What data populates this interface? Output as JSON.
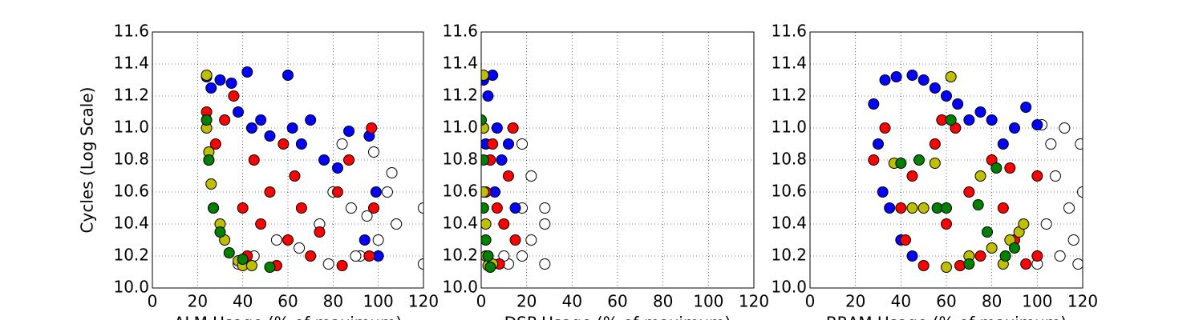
{
  "chart_data": [
    {
      "type": "scatter",
      "xlabel": "ALM Usage (% of maximum)",
      "ylabel": "Cycles (Log Scale)",
      "xlim": [
        0,
        120
      ],
      "ylim": [
        10,
        11.6
      ],
      "xticks": [
        0,
        20,
        40,
        60,
        80,
        100,
        120
      ],
      "yticks": [
        {
          "value": 10,
          "label": "10.0"
        },
        10.2,
        10.4,
        10.6,
        10.8,
        {
          "value": 11,
          "label": "11.0"
        },
        11.2,
        11.4,
        11.6
      ],
      "grid": true,
      "series": [
        {
          "color": "#ffffff",
          "x": [
            38,
            45,
            55,
            65,
            74,
            78,
            80,
            84,
            88,
            92,
            95,
            100,
            104,
            108,
            106,
            120,
            120,
            98,
            90
          ],
          "y": [
            10.15,
            10.2,
            10.3,
            10.25,
            10.4,
            10.15,
            10.6,
            10.9,
            10.5,
            10.2,
            10.45,
            10.3,
            10.6,
            10.4,
            10.72,
            10.5,
            10.15,
            10.85,
            10.2
          ]
        },
        {
          "color": "#0000ff",
          "x": [
            24,
            26,
            30,
            35,
            38,
            42,
            44,
            48,
            52,
            60,
            62,
            66,
            70,
            76,
            82,
            87,
            96,
            99,
            100,
            94
          ],
          "y": [
            11.32,
            11.25,
            11.3,
            11.28,
            11.1,
            11.35,
            11.0,
            11.05,
            10.95,
            11.33,
            11.0,
            10.9,
            11.05,
            10.8,
            10.75,
            10.98,
            10.95,
            10.6,
            10.2,
            10.3
          ]
        },
        {
          "color": "#ff0000",
          "x": [
            24,
            25,
            28,
            32,
            36,
            40,
            42,
            45,
            48,
            52,
            55,
            58,
            60,
            63,
            66,
            70,
            74,
            82,
            84,
            87,
            97,
            98,
            96
          ],
          "y": [
            11.1,
            10.8,
            10.9,
            11.05,
            11.2,
            10.5,
            10.2,
            10.8,
            10.4,
            10.6,
            10.14,
            10.9,
            10.3,
            10.7,
            10.5,
            10.2,
            10.35,
            10.6,
            10.14,
            10.8,
            11.0,
            10.5,
            10.2
          ]
        },
        {
          "color": "#bfbf00",
          "x": [
            24,
            24,
            25,
            26,
            27,
            30,
            32,
            38,
            40,
            44
          ],
          "y": [
            11.33,
            11.0,
            10.85,
            10.65,
            10.5,
            10.4,
            10.3,
            10.17,
            10.14,
            10.14
          ]
        },
        {
          "color": "#008000",
          "x": [
            24,
            25,
            27,
            30,
            34,
            40,
            52
          ],
          "y": [
            11.05,
            10.8,
            10.5,
            10.35,
            10.22,
            10.18,
            10.13
          ]
        }
      ]
    },
    {
      "type": "scatter",
      "xlabel": "DSP Usage (% of maximum)",
      "xlim": [
        0,
        120
      ],
      "ylim": [
        10,
        11.6
      ],
      "xticks": [
        0,
        20,
        40,
        60,
        80,
        100,
        120
      ],
      "yticks": [
        {
          "value": 10,
          "label": "10.0"
        },
        10.2,
        10.4,
        10.6,
        10.8,
        {
          "value": 11,
          "label": "11.0"
        },
        11.2,
        11.4,
        11.6
      ],
      "grid": true,
      "series": [
        {
          "color": "#ffffff",
          "x": [
            18,
            18,
            18,
            22,
            22,
            28,
            28,
            28,
            12,
            10
          ],
          "y": [
            10.2,
            10.5,
            10.9,
            10.7,
            10.3,
            10.15,
            10.4,
            10.5,
            10.15,
            10.2
          ]
        },
        {
          "color": "#0000ff",
          "x": [
            1,
            3,
            5,
            7,
            9,
            12,
            15,
            2,
            6
          ],
          "y": [
            11.3,
            11.2,
            11.33,
            11.0,
            10.8,
            10.9,
            10.5,
            10.9,
            10.6
          ]
        },
        {
          "color": "#ff0000",
          "x": [
            1,
            2,
            3,
            5,
            7,
            8,
            10,
            12,
            14,
            15,
            4
          ],
          "y": [
            11.0,
            10.6,
            10.2,
            10.9,
            10.5,
            10.15,
            10.4,
            10.7,
            11.0,
            10.3,
            10.8
          ]
        },
        {
          "color": "#bfbf00",
          "x": [
            1,
            1,
            1,
            2,
            2,
            3,
            5
          ],
          "y": [
            11.33,
            11.0,
            10.6,
            10.4,
            10.2,
            10.14,
            10.15
          ]
        },
        {
          "color": "#008000",
          "x": [
            0,
            1,
            1,
            2,
            3,
            4
          ],
          "y": [
            11.05,
            10.8,
            10.5,
            10.3,
            10.2,
            10.13
          ]
        }
      ]
    },
    {
      "type": "scatter",
      "xlabel": "BRAM Usage (% of maximum)",
      "xlim": [
        0,
        120
      ],
      "ylim": [
        10,
        11.6
      ],
      "xticks": [
        0,
        20,
        40,
        60,
        80,
        100,
        120
      ],
      "yticks": [
        {
          "value": 10,
          "label": "10.0"
        },
        10.2,
        10.4,
        10.6,
        10.8,
        {
          "value": 11,
          "label": "11.0"
        },
        11.2,
        11.4,
        11.6
      ],
      "grid": true,
      "series": [
        {
          "color": "#ffffff",
          "x": [
            100,
            104,
            108,
            112,
            116,
            120,
            118,
            110,
            106,
            114,
            102,
            119
          ],
          "y": [
            10.15,
            10.4,
            10.7,
            11.0,
            10.3,
            10.6,
            10.15,
            10.2,
            10.9,
            10.5,
            11.02,
            10.9
          ]
        },
        {
          "color": "#0000ff",
          "x": [
            28,
            30,
            33,
            38,
            45,
            50,
            55,
            60,
            65,
            70,
            80,
            90,
            95,
            100,
            32,
            35,
            40,
            45,
            75,
            85
          ],
          "y": [
            11.15,
            10.9,
            11.3,
            11.32,
            11.33,
            11.3,
            11.25,
            11.2,
            11.15,
            11.05,
            11.05,
            11.0,
            11.13,
            11.02,
            10.6,
            10.5,
            10.3,
            10.2,
            11.1,
            10.9
          ]
        },
        {
          "color": "#ff0000",
          "x": [
            28,
            33,
            40,
            45,
            50,
            55,
            60,
            64,
            70,
            75,
            80,
            85,
            90,
            95,
            100,
            100,
            42,
            58,
            66,
            88
          ],
          "y": [
            10.8,
            11.0,
            10.5,
            10.7,
            10.14,
            10.9,
            10.4,
            11.0,
            10.6,
            10.2,
            10.8,
            10.5,
            10.3,
            10.15,
            10.7,
            10.2,
            10.3,
            11.05,
            10.14,
            10.75
          ]
        },
        {
          "color": "#bfbf00",
          "x": [
            37,
            45,
            50,
            55,
            62,
            70,
            75,
            80,
            88,
            92,
            94,
            60,
            85
          ],
          "y": [
            10.78,
            10.5,
            10.5,
            10.78,
            11.32,
            10.2,
            10.7,
            10.25,
            10.3,
            10.35,
            10.4,
            10.13,
            10.15
          ]
        },
        {
          "color": "#008000",
          "x": [
            40,
            48,
            56,
            60,
            62,
            74,
            78,
            82,
            86,
            90,
            70
          ],
          "y": [
            10.78,
            10.8,
            10.5,
            10.5,
            11.05,
            10.52,
            10.35,
            10.75,
            10.2,
            10.25,
            10.15
          ]
        }
      ]
    }
  ]
}
